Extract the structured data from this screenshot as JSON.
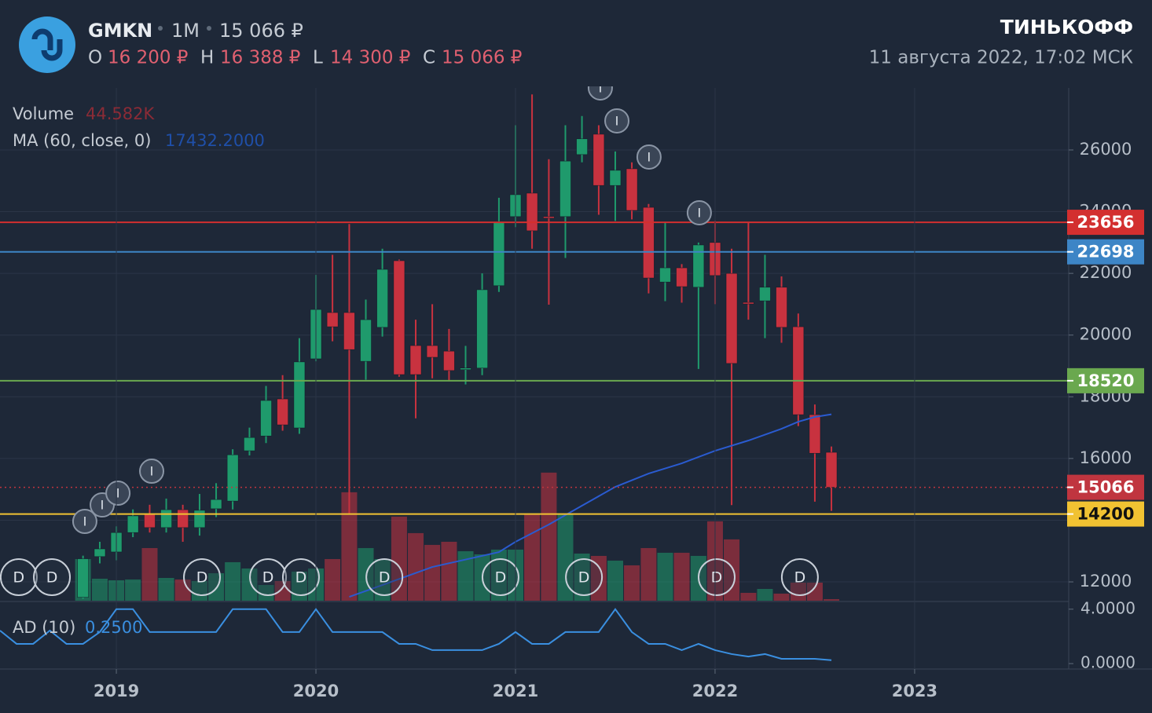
{
  "header": {
    "symbol": "GMKN",
    "interval": "1M",
    "price": "15 066 ₽",
    "ohlc": [
      {
        "key": "O",
        "value": "16 200 ₽"
      },
      {
        "key": "H",
        "value": "16 388 ₽"
      },
      {
        "key": "L",
        "value": "14 300 ₽"
      },
      {
        "key": "C",
        "value": "15 066 ₽"
      }
    ],
    "brand": "ТИНЬКОФФ",
    "datetime": "11 августа 2022, 17:02 МСК"
  },
  "chart_data": [
    {
      "type": "candlestick",
      "x": [
        2018.833,
        2018.917,
        2019,
        2019.083,
        2019.167,
        2019.25,
        2019.333,
        2019.417,
        2019.5,
        2019.583,
        2019.667,
        2019.75,
        2019.833,
        2019.917,
        2020,
        2020.083,
        2020.167,
        2020.25,
        2020.333,
        2020.417,
        2020.5,
        2020.583,
        2020.667,
        2020.75,
        2020.833,
        2020.917,
        2021,
        2021.083,
        2021.167,
        2021.25,
        2021.333,
        2021.417,
        2021.5,
        2021.583,
        2021.667,
        2021.75,
        2021.833,
        2021.917,
        2022,
        2022.083,
        2022.167,
        2022.25,
        2022.333,
        2022.417,
        2022.5,
        2022.583
      ],
      "open": [
        11500,
        12820,
        12970,
        13600,
        14190,
        13760,
        14340,
        13760,
        14370,
        14620,
        16250,
        16730,
        17930,
        16990,
        19230,
        20730,
        20730,
        19150,
        20250,
        22410,
        19660,
        19660,
        19480,
        18900,
        18930,
        21600,
        23840,
        24600,
        23840,
        23840,
        25850,
        26510,
        24850,
        25390,
        24140,
        21720,
        22180,
        21550,
        23000,
        22000,
        21060,
        21110,
        21550,
        20270,
        17420,
        16200
      ],
      "high": [
        12850,
        13300,
        13800,
        14350,
        14500,
        14700,
        14500,
        14850,
        15200,
        16300,
        17000,
        18350,
        18700,
        19900,
        21950,
        22600,
        23600,
        21150,
        22800,
        22450,
        20500,
        21000,
        20200,
        19650,
        22000,
        24450,
        26800,
        27800,
        25700,
        26800,
        27100,
        26800,
        25950,
        25600,
        24250,
        23650,
        22300,
        23000,
        23700,
        22800,
        23650,
        22600,
        21900,
        20700,
        17750,
        16388
      ],
      "low": [
        11450,
        12600,
        12700,
        13450,
        13600,
        13600,
        13300,
        13500,
        14100,
        14350,
        16100,
        16500,
        16900,
        16800,
        19150,
        19800,
        14200,
        18550,
        19950,
        18650,
        17300,
        18600,
        18500,
        18400,
        18700,
        21400,
        23500,
        22800,
        20985,
        22500,
        25600,
        23900,
        23700,
        23750,
        21350,
        21100,
        21050,
        18900,
        21000,
        14490,
        20500,
        19900,
        19750,
        17050,
        14600,
        14300
      ],
      "close": [
        12750,
        13070,
        13600,
        14140,
        13760,
        14340,
        13760,
        14320,
        14670,
        16120,
        16680,
        17880,
        17090,
        19130,
        20830,
        20270,
        19530,
        20500,
        22130,
        18720,
        18720,
        19280,
        18850,
        18930,
        21470,
        23680,
        24550,
        23380,
        23790,
        25640,
        26360,
        24850,
        25340,
        24040,
        21850,
        22180,
        21570,
        22920,
        21930,
        19080,
        21010,
        21550,
        20250,
        17420,
        16170,
        15066
      ],
      "up_color": "#1f9a6c",
      "down_color": "#c8323f",
      "volume": {
        "name": "Volume",
        "values": [
          1181,
          624,
          580,
          602,
          1493,
          646,
          602,
          557,
          780,
          1092,
          914,
          446,
          557,
          825,
          914,
          1181,
          3076,
          1493,
          1181,
          2385,
          1917,
          1583,
          1672,
          1404,
          1315,
          1449,
          1449,
          2474,
          3633,
          2474,
          1337,
          1271,
          1137,
          1003,
          1493,
          1360,
          1360,
          1271,
          2251,
          1739,
          223,
          334,
          201,
          513,
          513,
          44.582
        ],
        "last_label": "44.582K"
      },
      "ma": {
        "name": "MA (60, close, 0)",
        "color": "#2a5bd0",
        "x": [
          2020.167,
          2020.333,
          2020.583,
          2020.917,
          2021,
          2021.167,
          2021.333,
          2021.5,
          2021.667,
          2021.833,
          2022,
          2022.167,
          2022.333,
          2022.417,
          2022.5,
          2022.583
        ],
        "values": [
          11516,
          11898,
          12483,
          12967,
          13298,
          13858,
          14469,
          15080,
          15512,
          15843,
          16251,
          16582,
          16963,
          17192,
          17345,
          17432.2
        ],
        "last_label": "17432.2000"
      },
      "hlines": [
        {
          "value": 23656,
          "color": "#d32f2f",
          "style": "solid"
        },
        {
          "value": 22698,
          "color": "#3d85c6",
          "style": "solid"
        },
        {
          "value": 18520,
          "color": "#6aa84f",
          "style": "solid"
        },
        {
          "value": 15066,
          "color": "#c0353f",
          "style": "dotted"
        },
        {
          "value": 14200,
          "color": "#f1c232",
          "style": "solid"
        }
      ],
      "dividends": {
        "label": "D",
        "x": [
          2018.511,
          2018.677,
          2019.429,
          2019.76,
          2019.925,
          2020.343,
          2020.925,
          2021.343,
          2022.008,
          2022.425
        ]
      },
      "ideas": {
        "label": "I",
        "x": [
          2018.842,
          2018.929,
          2019.008,
          2019.177,
          2021.425,
          2021.508,
          2021.669,
          2021.921
        ],
        "y": [
          13960,
          14494,
          14876,
          15589,
          28011,
          26942,
          25771,
          23964
        ]
      },
      "xlim": [
        2018.417,
        2023.772
      ],
      "xticks": [
        2019,
        2020,
        2021,
        2022,
        2023
      ],
      "ylim": [
        11390,
        28010
      ],
      "yticks": [
        12000,
        14000,
        16000,
        18000,
        20000,
        22000,
        24000,
        26000
      ],
      "grid": true
    },
    {
      "type": "line",
      "name": "AD (10)",
      "color": "#3a8fe0",
      "last_label": "0.2500",
      "x": [
        2018.417,
        2018.5,
        2018.583,
        2018.667,
        2018.75,
        2018.833,
        2018.917,
        2019,
        2019.083,
        2019.167,
        2019.25,
        2019.333,
        2019.417,
        2019.5,
        2019.583,
        2019.667,
        2019.75,
        2019.833,
        2019.917,
        2020,
        2020.083,
        2020.167,
        2020.25,
        2020.333,
        2020.417,
        2020.5,
        2020.583,
        2020.667,
        2020.75,
        2020.833,
        2020.917,
        2021,
        2021.083,
        2021.167,
        2021.25,
        2021.333,
        2021.417,
        2021.5,
        2021.583,
        2021.667,
        2021.75,
        2021.833,
        2021.917,
        2022,
        2022.083,
        2022.167,
        2022.25,
        2022.333,
        2022.417,
        2022.5,
        2022.583
      ],
      "values": [
        2.43,
        1.45,
        1.45,
        2.43,
        1.45,
        1.45,
        2.32,
        4,
        4,
        2.32,
        2.32,
        2.32,
        2.32,
        2.32,
        4,
        4,
        4,
        2.32,
        2.32,
        4,
        2.32,
        2.32,
        2.32,
        2.32,
        1.45,
        1.45,
        0.99,
        0.99,
        0.99,
        0.99,
        1.45,
        2.32,
        1.45,
        1.45,
        2.32,
        2.32,
        2.32,
        4,
        2.32,
        1.45,
        1.45,
        0.99,
        1.45,
        0.99,
        0.7,
        0.52,
        0.7,
        0.35,
        0.35,
        0.35,
        0.25
      ],
      "ylim": [
        -0.4,
        4.45
      ],
      "yticks": [
        {
          "value": 4,
          "label": "4.0000"
        },
        {
          "value": 0,
          "label": "0.0000"
        }
      ]
    }
  ]
}
